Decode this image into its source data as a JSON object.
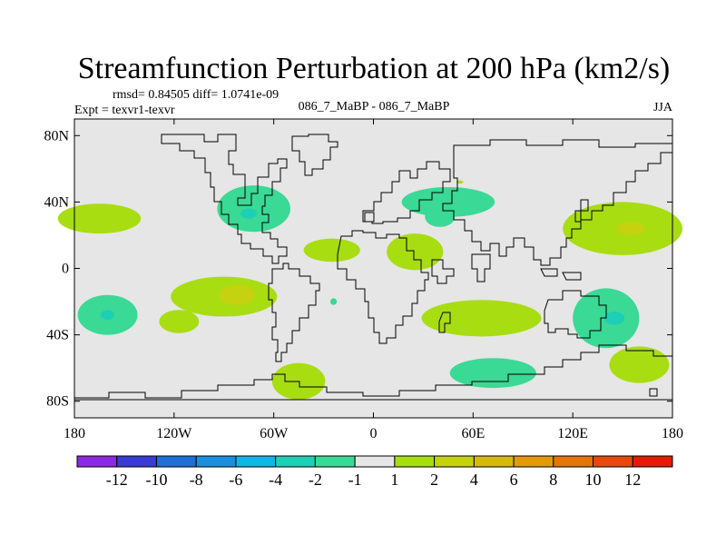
{
  "chart_data": {
    "type": "contour-map",
    "title": "Streamfunction Perturbation at 200 hPa (km2/s)",
    "stats_line": "rmsd= 0.84505 diff= 1.0741e-09",
    "experiment_label": "Expt = texvr1-texvr",
    "case_label": "086_7_MaBP - 086_7_MaBP",
    "season_label": "JJA",
    "lon_range": [
      -180,
      180
    ],
    "lat_range": [
      -90,
      90
    ],
    "x_ticks": [
      {
        "value": -180,
        "label": "180"
      },
      {
        "value": -120,
        "label": "120W"
      },
      {
        "value": -60,
        "label": "60W"
      },
      {
        "value": 0,
        "label": "0"
      },
      {
        "value": 60,
        "label": "60E"
      },
      {
        "value": 120,
        "label": "120E"
      },
      {
        "value": 180,
        "label": "180"
      }
    ],
    "y_ticks": [
      {
        "value": 80,
        "label": "80N"
      },
      {
        "value": 40,
        "label": "40N"
      },
      {
        "value": 0,
        "label": "0"
      },
      {
        "value": -40,
        "label": "40S"
      },
      {
        "value": -80,
        "label": "80S"
      }
    ],
    "colorbar": {
      "colors": [
        "#8a2be2",
        "#3b3bd6",
        "#1f6fd8",
        "#1a8fe0",
        "#11b6e8",
        "#1ccfb5",
        "#3ad995",
        "#e6e6e6",
        "#a8dd12",
        "#c5d20f",
        "#d5b90e",
        "#e29a0c",
        "#e5740a",
        "#e64a0a",
        "#e51b0a"
      ],
      "labels": [
        "-12",
        "-10",
        "-8",
        "-6",
        "-4",
        "-2",
        "-1",
        "1",
        "2",
        "4",
        "6",
        "8",
        "10",
        "12"
      ]
    },
    "contour_regions": [
      {
        "name": "n-atlantic-low",
        "lon": -72,
        "lat": 36,
        "rx": 22,
        "ry": 14,
        "level": "-1"
      },
      {
        "name": "n-atlantic-low-core",
        "lon": -75,
        "lat": 33,
        "rx": 5,
        "ry": 3,
        "level": "-2"
      },
      {
        "name": "dateline-north-high",
        "lon": -165,
        "lat": 30,
        "rx": 25,
        "ry": 9,
        "level": "1"
      },
      {
        "name": "atlantic-central-high",
        "lon": -25,
        "lat": 11,
        "rx": 17,
        "ry": 7,
        "level": "1"
      },
      {
        "name": "mideast-high",
        "lon": 25,
        "lat": 10,
        "rx": 17,
        "ry": 11,
        "level": "1"
      },
      {
        "name": "russia-low",
        "lon": 52,
        "lat": 52,
        "rx": 2,
        "ry": 1,
        "level": "1"
      },
      {
        "name": "caspian-low",
        "lon": 40,
        "lat": 31,
        "rx": 9,
        "ry": 6,
        "level": "-1"
      },
      {
        "name": "asia-north-low",
        "lon": 45,
        "lat": 40,
        "rx": 28,
        "ry": 9,
        "level": "-1"
      },
      {
        "name": "w-pacific-north-high",
        "lon": 150,
        "lat": 24,
        "rx": 36,
        "ry": 16,
        "level": "1"
      },
      {
        "name": "w-pacific-north-high-core",
        "lon": 155,
        "lat": 24,
        "rx": 9,
        "ry": 4,
        "level": "2"
      },
      {
        "name": "sw-pacific-low",
        "lon": -160,
        "lat": -28,
        "rx": 18,
        "ry": 12,
        "level": "-1"
      },
      {
        "name": "sw-pacific-low-core",
        "lon": -160,
        "lat": -28,
        "rx": 4,
        "ry": 3,
        "level": "-2"
      },
      {
        "name": "s-pacific-small-high",
        "lon": -117,
        "lat": -32,
        "rx": 12,
        "ry": 7,
        "level": "1"
      },
      {
        "name": "se-pacific-high",
        "lon": -90,
        "lat": -17,
        "rx": 32,
        "ry": 12,
        "level": "1"
      },
      {
        "name": "se-pacific-high-core",
        "lon": -82,
        "lat": -16,
        "rx": 11,
        "ry": 6,
        "level": "2"
      },
      {
        "name": "s-atlantic-dot",
        "lon": -24,
        "lat": -20,
        "rx": 2,
        "ry": 2,
        "level": "-1"
      },
      {
        "name": "s-atlantic-high",
        "lon": -45,
        "lat": -68,
        "rx": 16,
        "ry": 11,
        "level": "1"
      },
      {
        "name": "indian-ocean-high",
        "lon": 65,
        "lat": -30,
        "rx": 36,
        "ry": 11,
        "level": "1"
      },
      {
        "name": "s-indian-low",
        "lon": 72,
        "lat": -63,
        "rx": 26,
        "ry": 9,
        "level": "-1"
      },
      {
        "name": "australia-east-low",
        "lon": 140,
        "lat": -30,
        "rx": 20,
        "ry": 18,
        "level": "-1"
      },
      {
        "name": "australia-east-low-core",
        "lon": 145,
        "lat": -30,
        "rx": 6,
        "ry": 4,
        "level": "-2"
      },
      {
        "name": "s-pacific-east-high",
        "lon": 160,
        "lat": -58,
        "rx": 18,
        "ry": 11,
        "level": "1"
      }
    ],
    "level_colors": {
      "-2": "#1ccfb5",
      "-1": "#3ad995",
      "1": "#a8dd12",
      "2": "#c5d20f"
    }
  }
}
